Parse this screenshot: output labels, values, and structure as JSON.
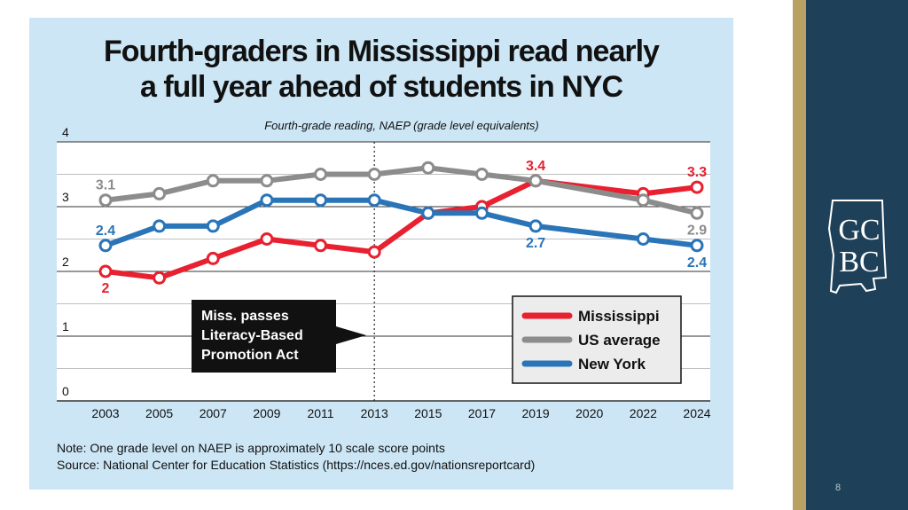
{
  "title_lines": [
    "Fourth-graders in Mississippi read nearly",
    "a full year ahead of students in NYC"
  ],
  "chart_data": {
    "type": "line",
    "subtitle": "Fourth-grade reading, NAEP (grade level equivalents)",
    "categories": [
      "2003",
      "2005",
      "2007",
      "2009",
      "2011",
      "2013",
      "2015",
      "2017",
      "2019",
      "2020",
      "2022",
      "2024"
    ],
    "ylim": [
      0,
      4
    ],
    "yticks": [
      0,
      1,
      2,
      3,
      4
    ],
    "grid": true,
    "series": [
      {
        "name": "Mississippi",
        "color": "#e8202f",
        "points": [
          [
            "2003",
            2.0
          ],
          [
            "2005",
            1.9
          ],
          [
            "2007",
            2.2
          ],
          [
            "2009",
            2.5
          ],
          [
            "2011",
            2.4
          ],
          [
            "2013",
            2.3
          ],
          [
            "2015",
            2.9
          ],
          [
            "2017",
            3.0
          ],
          [
            "2019",
            3.4
          ],
          [
            "2022",
            3.2
          ],
          [
            "2024",
            3.3
          ]
        ]
      },
      {
        "name": "US average",
        "color": "#8c8c8c",
        "points": [
          [
            "2003",
            3.1
          ],
          [
            "2005",
            3.2
          ],
          [
            "2007",
            3.4
          ],
          [
            "2009",
            3.4
          ],
          [
            "2011",
            3.5
          ],
          [
            "2013",
            3.5
          ],
          [
            "2015",
            3.6
          ],
          [
            "2017",
            3.5
          ],
          [
            "2019",
            3.4
          ],
          [
            "2022",
            3.1
          ],
          [
            "2024",
            2.9
          ]
        ]
      },
      {
        "name": "New York",
        "color": "#2a74b8",
        "points": [
          [
            "2003",
            2.4
          ],
          [
            "2005",
            2.7
          ],
          [
            "2007",
            2.7
          ],
          [
            "2009",
            3.1
          ],
          [
            "2011",
            3.1
          ],
          [
            "2013",
            3.1
          ],
          [
            "2015",
            2.9
          ],
          [
            "2017",
            2.9
          ],
          [
            "2019",
            2.7
          ],
          [
            "2022",
            2.5
          ],
          [
            "2024",
            2.4
          ]
        ]
      }
    ],
    "data_labels": [
      {
        "text": "3.1",
        "series": "US average",
        "x": "2003",
        "y": 3.1,
        "pos": "above"
      },
      {
        "text": "2.4",
        "series": "New York",
        "x": "2003",
        "y": 2.4,
        "pos": "above"
      },
      {
        "text": "2",
        "series": "Mississippi",
        "x": "2003",
        "y": 2.0,
        "pos": "below"
      },
      {
        "text": "3.4",
        "series": "Mississippi",
        "x": "2019",
        "y": 3.4,
        "pos": "above"
      },
      {
        "text": "2.7",
        "series": "New York",
        "x": "2019",
        "y": 2.7,
        "pos": "below"
      },
      {
        "text": "3.3",
        "series": "Mississippi",
        "x": "2024",
        "y": 3.3,
        "pos": "above"
      },
      {
        "text": "2.9",
        "series": "US average",
        "x": "2024",
        "y": 2.9,
        "pos": "below"
      },
      {
        "text": "2.4",
        "series": "New York",
        "x": "2024",
        "y": 2.4,
        "pos": "below"
      }
    ],
    "marker_year": "2013",
    "annotation_lines": [
      "Miss. passes",
      "Literacy-Based",
      "Promotion Act"
    ],
    "legend_position": "bottom-right"
  },
  "note_lines": [
    "Note: One grade level on NAEP is approximately 10 scale score points",
    "Source: National Center for Education Statistics (https://nces.ed.gov/nationsreportcard)"
  ],
  "logo_text": [
    "GC",
    "BC"
  ],
  "page_number": "8",
  "colors": {
    "panel_bg": "#cce6f5",
    "sidebar_gold": "#b9a063",
    "sidebar_blue": "#1e4159"
  }
}
